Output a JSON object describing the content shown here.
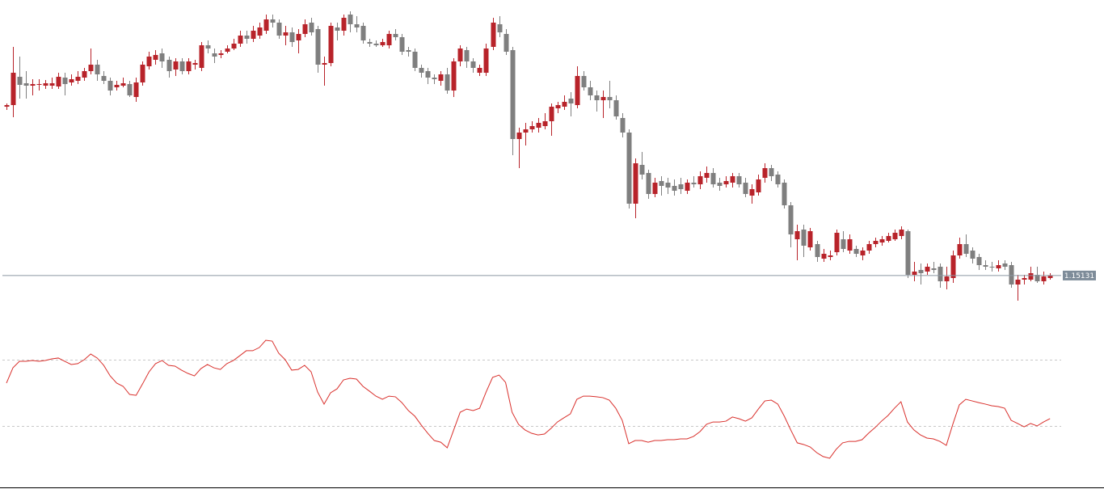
{
  "chart_data": [
    {
      "type": "candlestick",
      "up_color": "#b8232a",
      "down_color": "#7f7f7f",
      "ylim": [
        1.1459,
        1.1854
      ],
      "last_price": 1.15131,
      "open": [
        1.1722,
        1.1724,
        1.1759,
        1.1751,
        1.1748,
        1.1749,
        1.1748,
        1.1748,
        1.1747,
        1.1758,
        1.1752,
        1.1754,
        1.1758,
        1.1766,
        1.1774,
        1.176,
        1.1754,
        1.1746,
        1.1748,
        1.175,
        1.1734,
        1.1752,
        1.1772,
        1.178,
        1.1788,
        1.178,
        1.1768,
        1.1778,
        1.1766,
        1.1774,
        1.177,
        1.1798,
        1.1788,
        1.1786,
        1.179,
        1.1794,
        1.18,
        1.181,
        1.1806,
        1.181,
        1.1816,
        1.183,
        1.1826,
        1.181,
        1.1814,
        1.1804,
        1.1812,
        1.1826,
        1.1818,
        1.1774,
        1.1776,
        1.182,
        1.1816,
        1.1836,
        1.1824,
        1.1822,
        1.1802,
        1.18,
        1.1798,
        1.1798,
        1.1812,
        1.1808,
        1.1792,
        1.179,
        1.177,
        1.1766,
        1.1758,
        1.1754,
        1.1762,
        1.1742,
        1.1778,
        1.1792,
        1.1778,
        1.1764,
        1.1764,
        1.1796,
        1.1824,
        1.1812,
        1.1792,
        1.1682,
        1.169,
        1.1694,
        1.1696,
        1.1698,
        1.1704,
        1.172,
        1.1722,
        1.1732,
        1.1724,
        1.176,
        1.1746,
        1.1736,
        1.173,
        1.1734,
        1.173,
        1.1708,
        1.169,
        1.1602,
        1.165,
        1.164,
        1.1614,
        1.163,
        1.1628,
        1.1624,
        1.1626,
        1.1618,
        1.1628,
        1.1626,
        1.1634,
        1.164,
        1.1628,
        1.1626,
        1.1628,
        1.1636,
        1.1628,
        1.1612,
        1.1616,
        1.1634,
        1.1646,
        1.1638,
        1.1628,
        1.16,
        1.1558,
        1.157,
        1.1548,
        1.1552,
        1.1534,
        1.1536,
        1.1542,
        1.1558,
        1.1544,
        1.1546,
        1.1538,
        1.1544,
        1.1552,
        1.1554,
        1.1556,
        1.1558,
        1.1562,
        1.1568,
        1.1514,
        1.152,
        1.1518,
        1.1522,
        1.1524,
        1.1506,
        1.151,
        1.1538,
        1.1552,
        1.1544,
        1.1536,
        1.1526,
        1.1524,
        1.1522,
        1.1528,
        1.1526,
        1.1502,
        1.1508,
        1.1508,
        1.1514,
        1.1506,
        1.151
      ],
      "high": [
        1.1726,
        1.1796,
        1.1784,
        1.1766,
        1.1756,
        1.1756,
        1.1755,
        1.1758,
        1.1764,
        1.1764,
        1.1762,
        1.1766,
        1.177,
        1.1794,
        1.178,
        1.1766,
        1.1758,
        1.1754,
        1.1758,
        1.1754,
        1.1758,
        1.1778,
        1.179,
        1.1792,
        1.1794,
        1.1784,
        1.1782,
        1.1782,
        1.1782,
        1.178,
        1.1802,
        1.1804,
        1.1794,
        1.1792,
        1.1798,
        1.1806,
        1.1816,
        1.1816,
        1.1822,
        1.1826,
        1.1836,
        1.1836,
        1.183,
        1.1822,
        1.182,
        1.1818,
        1.183,
        1.1832,
        1.1822,
        1.1784,
        1.1826,
        1.1826,
        1.1836,
        1.184,
        1.1834,
        1.1826,
        1.1806,
        1.1804,
        1.1806,
        1.1816,
        1.1818,
        1.1812,
        1.1796,
        1.1794,
        1.1774,
        1.177,
        1.1762,
        1.1766,
        1.177,
        1.1782,
        1.1798,
        1.1796,
        1.1782,
        1.1774,
        1.18,
        1.1832,
        1.1834,
        1.1818,
        1.1796,
        1.1696,
        1.1702,
        1.1704,
        1.1708,
        1.1714,
        1.1726,
        1.1728,
        1.1736,
        1.174,
        1.1772,
        1.1766,
        1.1754,
        1.1742,
        1.1742,
        1.1754,
        1.1736,
        1.1714,
        1.1694,
        1.1658,
        1.1666,
        1.1644,
        1.1634,
        1.1636,
        1.1634,
        1.1632,
        1.1634,
        1.1632,
        1.1636,
        1.1642,
        1.1648,
        1.1646,
        1.1634,
        1.1636,
        1.164,
        1.164,
        1.1634,
        1.1626,
        1.1638,
        1.1652,
        1.165,
        1.1642,
        1.1632,
        1.1604,
        1.1576,
        1.1576,
        1.1572,
        1.1556,
        1.1546,
        1.1544,
        1.157,
        1.1568,
        1.1564,
        1.155,
        1.1548,
        1.1556,
        1.156,
        1.1562,
        1.1566,
        1.157,
        1.1574,
        1.157,
        1.153,
        1.1528,
        1.1528,
        1.153,
        1.1528,
        1.1524,
        1.1544,
        1.156,
        1.1564,
        1.1548,
        1.154,
        1.1532,
        1.153,
        1.1532,
        1.1532,
        1.153,
        1.1514,
        1.1514,
        1.1524,
        1.1524,
        1.1518,
        1.1516
      ],
      "low": [
        1.1718,
        1.1709,
        1.1732,
        1.1732,
        1.1736,
        1.1742,
        1.1744,
        1.1744,
        1.1744,
        1.1736,
        1.1748,
        1.175,
        1.1754,
        1.1762,
        1.1754,
        1.175,
        1.1736,
        1.1742,
        1.1746,
        1.1734,
        1.1728,
        1.1748,
        1.1768,
        1.1774,
        1.177,
        1.1758,
        1.176,
        1.1762,
        1.1762,
        1.1768,
        1.1766,
        1.1788,
        1.1776,
        1.1782,
        1.1788,
        1.1792,
        1.1796,
        1.18,
        1.1802,
        1.1806,
        1.1812,
        1.182,
        1.1806,
        1.1798,
        1.1796,
        1.1788,
        1.1808,
        1.181,
        1.1764,
        1.1748,
        1.1772,
        1.1804,
        1.181,
        1.1814,
        1.1814,
        1.18,
        1.1796,
        1.1796,
        1.1796,
        1.1794,
        1.1804,
        1.1786,
        1.1784,
        1.1766,
        1.1758,
        1.175,
        1.175,
        1.1748,
        1.1738,
        1.1734,
        1.1772,
        1.177,
        1.1764,
        1.176,
        1.176,
        1.1792,
        1.1808,
        1.1786,
        1.1662,
        1.1646,
        1.1674,
        1.169,
        1.169,
        1.1694,
        1.1686,
        1.1714,
        1.1718,
        1.171,
        1.172,
        1.1742,
        1.173,
        1.1716,
        1.1708,
        1.172,
        1.1706,
        1.1684,
        1.1596,
        1.1584,
        1.1632,
        1.1608,
        1.161,
        1.1612,
        1.1614,
        1.1612,
        1.1614,
        1.1614,
        1.1622,
        1.162,
        1.1628,
        1.1622,
        1.1618,
        1.1622,
        1.1622,
        1.1622,
        1.161,
        1.1602,
        1.1612,
        1.1628,
        1.163,
        1.1622,
        1.1596,
        1.1548,
        1.1532,
        1.1536,
        1.1544,
        1.153,
        1.153,
        1.1532,
        1.1538,
        1.1542,
        1.154,
        1.1536,
        1.1532,
        1.154,
        1.1548,
        1.155,
        1.1554,
        1.1556,
        1.1558,
        1.151,
        1.1506,
        1.1502,
        1.1514,
        1.1516,
        1.1498,
        1.1496,
        1.1504,
        1.1534,
        1.1536,
        1.1528,
        1.152,
        1.152,
        1.1518,
        1.1518,
        1.152,
        1.1498,
        1.1482,
        1.1502,
        1.1506,
        1.1504,
        1.1502,
        1.1508
      ],
      "close": [
        1.1724,
        1.1764,
        1.1749,
        1.1748,
        1.175,
        1.175,
        1.1751,
        1.1751,
        1.1759,
        1.175,
        1.1756,
        1.1759,
        1.1766,
        1.1774,
        1.1762,
        1.1754,
        1.1742,
        1.1749,
        1.1751,
        1.1736,
        1.1752,
        1.1774,
        1.1784,
        1.1786,
        1.1778,
        1.1766,
        1.1778,
        1.1766,
        1.1778,
        1.1776,
        1.1798,
        1.1794,
        1.1784,
        1.1788,
        1.1794,
        1.18,
        1.181,
        1.1806,
        1.1816,
        1.182,
        1.183,
        1.1826,
        1.181,
        1.1814,
        1.1802,
        1.1812,
        1.1824,
        1.1814,
        1.1774,
        1.1776,
        1.1822,
        1.1816,
        1.1832,
        1.1824,
        1.182,
        1.1804,
        1.18,
        1.1798,
        1.1802,
        1.1812,
        1.1808,
        1.179,
        1.179,
        1.177,
        1.1764,
        1.1758,
        1.1756,
        1.1762,
        1.1742,
        1.1778,
        1.1794,
        1.1778,
        1.177,
        1.177,
        1.1794,
        1.1826,
        1.1814,
        1.179,
        1.1682,
        1.169,
        1.1694,
        1.1698,
        1.1702,
        1.1704,
        1.1722,
        1.1724,
        1.1728,
        1.1726,
        1.176,
        1.1746,
        1.1736,
        1.173,
        1.1734,
        1.173,
        1.171,
        1.169,
        1.1602,
        1.1652,
        1.1638,
        1.1614,
        1.1628,
        1.1624,
        1.1622,
        1.1618,
        1.162,
        1.1628,
        1.1626,
        1.1636,
        1.164,
        1.1626,
        1.1624,
        1.163,
        1.1636,
        1.1626,
        1.1614,
        1.162,
        1.1632,
        1.1646,
        1.1636,
        1.1626,
        1.16,
        1.1564,
        1.1568,
        1.155,
        1.1568,
        1.1536,
        1.154,
        1.1538,
        1.1566,
        1.1546,
        1.1558,
        1.154,
        1.1544,
        1.1552,
        1.1556,
        1.1558,
        1.1562,
        1.1566,
        1.157,
        1.1514,
        1.1518,
        1.1516,
        1.1524,
        1.152,
        1.1506,
        1.1512,
        1.1538,
        1.1552,
        1.154,
        1.1534,
        1.1526,
        1.1524,
        1.1523,
        1.1526,
        1.1524,
        1.1502,
        1.1508,
        1.151,
        1.1516,
        1.1506,
        1.1512,
        1.1513
      ]
    },
    {
      "type": "line",
      "color": "#d9302c",
      "ylim": [
        0,
        100
      ],
      "levels": [
        70,
        30
      ],
      "values": [
        55.9,
        65.1,
        69,
        69,
        69.5,
        69,
        69.5,
        70.5,
        71,
        69,
        67.1,
        67.6,
        70,
        73.4,
        71,
        66.6,
        60.2,
        55.9,
        53.9,
        49,
        48.5,
        55.4,
        62.7,
        67.6,
        69.5,
        66.6,
        66.1,
        63.7,
        61.7,
        60.2,
        64.6,
        67.1,
        65.1,
        64.1,
        67.6,
        69.5,
        72.4,
        75.4,
        75.4,
        77.3,
        81.7,
        81.2,
        73.9,
        70,
        63.7,
        64.1,
        66.6,
        62.7,
        50.5,
        43.2,
        50,
        52.4,
        57.8,
        58.8,
        58.3,
        53.9,
        51,
        48,
        46.1,
        48,
        47.6,
        44.1,
        39.3,
        35.9,
        30.5,
        25.6,
        21.2,
        20.2,
        16.8,
        27.6,
        38.3,
        40.2,
        39.3,
        40.7,
        50.5,
        59.3,
        60.7,
        56.3,
        38.3,
        31,
        27.6,
        25.6,
        24.6,
        25.1,
        28.5,
        32.4,
        34.9,
        37.3,
        46.1,
        48,
        48,
        47.6,
        47.1,
        45.6,
        40.7,
        33.4,
        19.3,
        21.2,
        21.2,
        20.2,
        21.2,
        21.2,
        21.7,
        21.7,
        22.2,
        22.2,
        23.7,
        26.6,
        31,
        32.4,
        32.4,
        32.9,
        35.4,
        34.4,
        32.9,
        34.9,
        40.2,
        45.1,
        45.6,
        43.2,
        35.9,
        27.6,
        19.8,
        18.8,
        17.3,
        13.9,
        11.5,
        10.5,
        15.9,
        19.8,
        20.7,
        20.7,
        21.7,
        25.6,
        29,
        32.9,
        36.3,
        40.7,
        44.6,
        32.4,
        27.6,
        24.6,
        22.7,
        22.2,
        20.7,
        18.3,
        31,
        42.7,
        46.1,
        45.1,
        44.1,
        43.2,
        42.2,
        41.7,
        40.7,
        33.4,
        31.5,
        29.5,
        31.5,
        30,
        32.4,
        34.4
      ]
    }
  ]
}
